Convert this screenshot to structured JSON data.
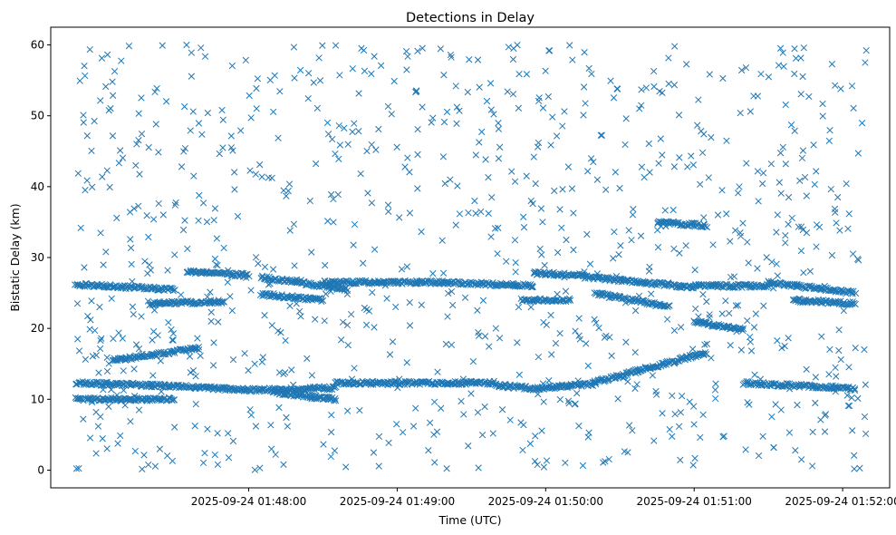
{
  "chart_data": {
    "type": "scatter",
    "title": "Detections in Delay",
    "xlabel": "Time (UTC)",
    "ylabel": "Bistatic Delay (km)",
    "marker": "x",
    "color": "#1f77b4",
    "grid": false,
    "x_start": "2025-09-24 01:46:50",
    "x_end": "2025-09-24 01:52:10",
    "xlim": [
      "2025-09-24 01:46:40",
      "2025-09-24 01:52:19"
    ],
    "ylim": [
      -2.5,
      62.5
    ],
    "x_ticks": [
      "2025-09-24 01:48:00",
      "2025-09-24 01:49:00",
      "2025-09-24 01:50:00",
      "2025-09-24 01:51:00",
      "2025-09-24 01:52:00"
    ],
    "y_ticks": [
      0,
      10,
      20,
      30,
      40,
      50,
      60
    ],
    "approx_points": 1900,
    "tracks": [
      {
        "from": "2025-09-24 01:46:50",
        "to": "2025-09-24 01:47:20",
        "y0": 12.3,
        "y1": 12.0
      },
      {
        "from": "2025-09-24 01:47:20",
        "to": "2025-09-24 01:48:00",
        "y0": 12.0,
        "y1": 11.3
      },
      {
        "from": "2025-09-24 01:48:00",
        "to": "2025-09-24 01:48:35",
        "y0": 11.3,
        "y1": 11.6
      },
      {
        "from": "2025-09-24 01:48:35",
        "to": "2025-09-24 01:49:40",
        "y0": 12.3,
        "y1": 12.3
      },
      {
        "from": "2025-09-24 01:49:40",
        "to": "2025-09-24 01:49:55",
        "y0": 12.0,
        "y1": 11.5
      },
      {
        "from": "2025-09-24 01:49:55",
        "to": "2025-09-24 01:50:20",
        "y0": 11.5,
        "y1": 12.2
      },
      {
        "from": "2025-09-24 01:50:20",
        "to": "2025-09-24 01:51:05",
        "y0": 12.4,
        "y1": 16.6
      },
      {
        "from": "2025-09-24 01:51:20",
        "to": "2025-09-24 01:52:05",
        "y0": 12.3,
        "y1": 11.5
      },
      {
        "from": "2025-09-24 01:47:05",
        "to": "2025-09-24 01:47:40",
        "y0": 15.5,
        "y1": 17.2
      },
      {
        "from": "2025-09-24 01:46:50",
        "to": "2025-09-24 01:47:30",
        "y0": 10.0,
        "y1": 10.0
      },
      {
        "from": "2025-09-24 01:48:10",
        "to": "2025-09-24 01:48:35",
        "y0": 11.0,
        "y1": 10.0
      },
      {
        "from": "2025-09-24 01:46:50",
        "to": "2025-09-24 01:47:30",
        "y0": 26.2,
        "y1": 25.5
      },
      {
        "from": "2025-09-24 01:47:20",
        "to": "2025-09-24 01:47:50",
        "y0": 23.5,
        "y1": 23.8
      },
      {
        "from": "2025-09-24 01:47:35",
        "to": "2025-09-24 01:48:00",
        "y0": 28.0,
        "y1": 27.5
      },
      {
        "from": "2025-09-24 01:48:05",
        "to": "2025-09-24 01:48:40",
        "y0": 27.2,
        "y1": 25.5
      },
      {
        "from": "2025-09-24 01:48:05",
        "to": "2025-09-24 01:48:30",
        "y0": 24.8,
        "y1": 24.0
      },
      {
        "from": "2025-09-24 01:48:30",
        "to": "2025-09-24 01:49:20",
        "y0": 26.5,
        "y1": 26.5
      },
      {
        "from": "2025-09-24 01:49:20",
        "to": "2025-09-24 01:49:55",
        "y0": 26.5,
        "y1": 26.0
      },
      {
        "from": "2025-09-24 01:49:55",
        "to": "2025-09-24 01:50:15",
        "y0": 27.8,
        "y1": 27.5
      },
      {
        "from": "2025-09-24 01:49:50",
        "to": "2025-09-24 01:50:10",
        "y0": 24.0,
        "y1": 24.0
      },
      {
        "from": "2025-09-24 01:50:15",
        "to": "2025-09-24 01:51:00",
        "y0": 27.3,
        "y1": 25.8
      },
      {
        "from": "2025-09-24 01:50:20",
        "to": "2025-09-24 01:50:50",
        "y0": 25.0,
        "y1": 23.0
      },
      {
        "from": "2025-09-24 01:51:00",
        "to": "2025-09-24 01:51:30",
        "y0": 26.0,
        "y1": 26.0
      },
      {
        "from": "2025-09-24 01:51:30",
        "to": "2025-09-24 01:52:05",
        "y0": 26.5,
        "y1": 25.0
      },
      {
        "from": "2025-09-24 01:51:40",
        "to": "2025-09-24 01:52:05",
        "y0": 24.0,
        "y1": 23.5
      },
      {
        "from": "2025-09-24 01:50:45",
        "to": "2025-09-24 01:51:05",
        "y0": 35.0,
        "y1": 34.5
      },
      {
        "from": "2025-09-24 01:51:00",
        "to": "2025-09-24 01:51:20",
        "y0": 21.0,
        "y1": 19.8
      }
    ]
  }
}
